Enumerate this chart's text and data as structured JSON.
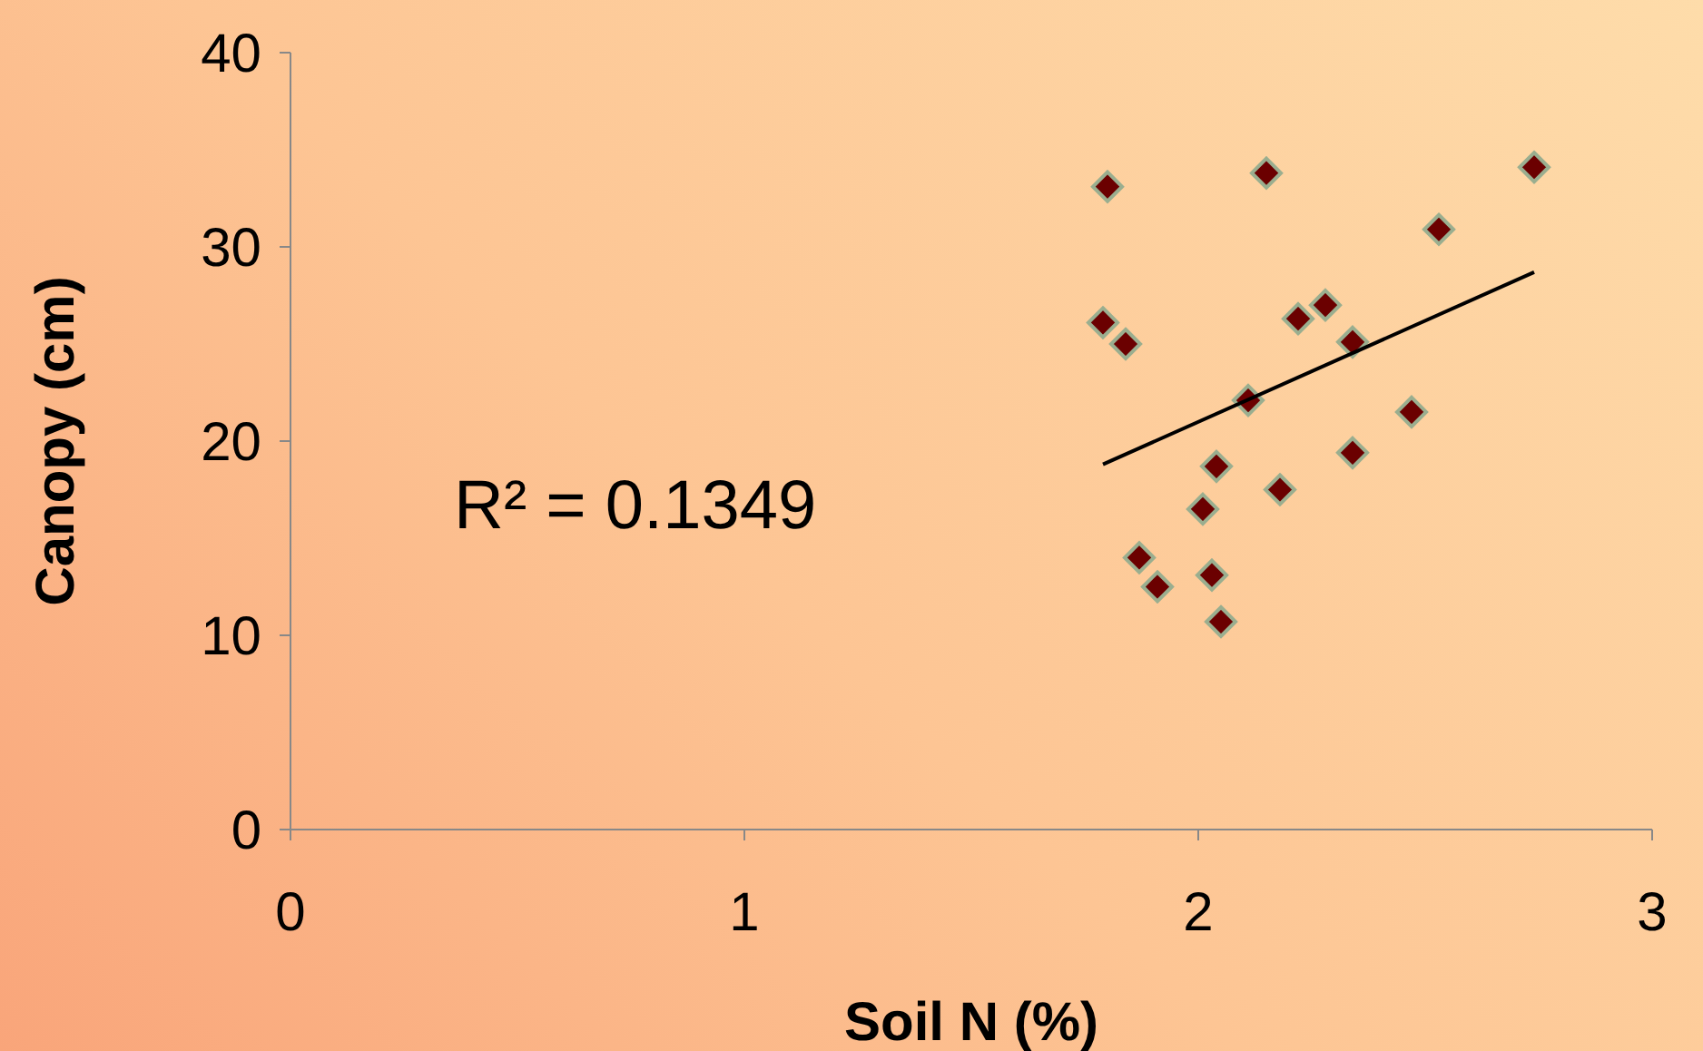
{
  "chart_data": {
    "type": "scatter",
    "xlabel": "Soil N (%)",
    "ylabel": "Canopy (cm)",
    "xlim": [
      0,
      3
    ],
    "xticks": [
      0,
      1,
      2,
      3
    ],
    "ylim": [
      0,
      40
    ],
    "yticks": [
      0,
      10,
      20,
      30,
      40
    ],
    "grid": false,
    "legend": false,
    "annotations": [
      "R² = 0.1349"
    ],
    "series": [
      {
        "color": "#6b0000",
        "marker": "diamond",
        "x": [
          1.8,
          2.15,
          2.74,
          2.53,
          1.79,
          1.84,
          2.28,
          2.22,
          2.34,
          2.11,
          2.47,
          2.34,
          2.04,
          2.18,
          2.01,
          1.87,
          1.91,
          2.03,
          2.05
        ],
        "values": [
          33.1,
          33.8,
          34.1,
          30.9,
          26.1,
          25.0,
          27.0,
          26.3,
          25.1,
          22.1,
          21.5,
          19.4,
          18.7,
          17.5,
          16.5,
          14.0,
          12.5,
          13.1,
          10.7
        ]
      },
      {
        "type": "line",
        "color": "#000000",
        "marker": "none",
        "x": [
          1.79,
          2.74
        ],
        "values": [
          18.8,
          28.7
        ]
      }
    ]
  }
}
